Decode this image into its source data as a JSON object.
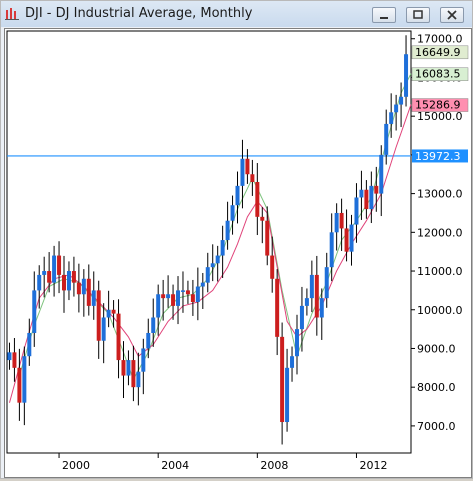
{
  "window": {
    "title": "DJI - DJ Industrial Average, Monthly",
    "icon": "chart-icon"
  },
  "chart_data": {
    "type": "candlestick",
    "title": "DJI - DJ Industrial Average, Monthly",
    "xlabel": "",
    "ylabel": "",
    "x_ticks": [
      "2000",
      "2004",
      "2008",
      "2012"
    ],
    "y_ticks": [
      7000,
      8000,
      9000,
      10000,
      11000,
      12000,
      13000,
      14000,
      15000,
      16000,
      17000
    ],
    "y_tick_labels": [
      "7000.0",
      "8000.0",
      "9000.0",
      "10000.0",
      "11000.0",
      "12000.0",
      "13000.0",
      "14000.0",
      "15000.0",
      "16000.0",
      "17000.0"
    ],
    "ylim": [
      6300,
      17200
    ],
    "xlim": [
      1997.9,
      2014.2
    ],
    "horizontal_line": {
      "value": 13972.3,
      "label": "13972.3",
      "color": "#1e90ff"
    },
    "price_badges": [
      {
        "label": "16649.9",
        "value": 16650,
        "bg": "#e0ecd0",
        "fg": "#000000"
      },
      {
        "label": "16083.5",
        "value": 16083,
        "bg": "#d8efd2",
        "fg": "#000000"
      },
      {
        "label": "15286.9",
        "value": 15287,
        "bg": "#ff8fb0",
        "fg": "#000000"
      }
    ],
    "series": [
      {
        "name": "price",
        "x": [
          1998.0,
          1998.2,
          1998.4,
          1998.6,
          1998.8,
          1999.0,
          1999.2,
          1999.4,
          1999.6,
          1999.8,
          2000.0,
          2000.2,
          2000.4,
          2000.6,
          2000.8,
          2001.0,
          2001.2,
          2001.4,
          2001.6,
          2001.8,
          2002.0,
          2002.2,
          2002.4,
          2002.6,
          2002.8,
          2003.0,
          2003.2,
          2003.4,
          2003.6,
          2003.8,
          2004.0,
          2004.2,
          2004.4,
          2004.6,
          2004.8,
          2005.0,
          2005.2,
          2005.4,
          2005.6,
          2005.8,
          2006.0,
          2006.2,
          2006.4,
          2006.6,
          2006.8,
          2007.0,
          2007.2,
          2007.4,
          2007.6,
          2007.8,
          2008.0,
          2008.2,
          2008.4,
          2008.6,
          2008.8,
          2009.0,
          2009.2,
          2009.4,
          2009.6,
          2009.8,
          2010.0,
          2010.2,
          2010.4,
          2010.6,
          2010.8,
          2011.0,
          2011.2,
          2011.4,
          2011.6,
          2011.8,
          2012.0,
          2012.2,
          2012.4,
          2012.6,
          2012.8,
          2013.0,
          2013.2,
          2013.4,
          2013.6,
          2013.8,
          2014.0
        ],
        "close": [
          8900,
          8500,
          7600,
          8800,
          9400,
          10500,
          10900,
          11000,
          10700,
          11400,
          10900,
          10500,
          11000,
          10700,
          10400,
          10800,
          10100,
          10500,
          9200,
          9800,
          10000,
          9900,
          8700,
          8300,
          8700,
          8000,
          8400,
          9000,
          9400,
          9800,
          10400,
          10300,
          10400,
          10100,
          10500,
          10500,
          10400,
          10200,
          10600,
          10700,
          11100,
          11200,
          11400,
          11800,
          12300,
          12700,
          13200,
          13900,
          13500,
          13300,
          12400,
          12300,
          11400,
          10800,
          9300,
          7100,
          8500,
          8800,
          9500,
          10100,
          10300,
          10900,
          9800,
          10300,
          11100,
          12000,
          12500,
          12100,
          11500,
          12200,
          12900,
          13100,
          12600,
          13200,
          13000,
          14000,
          14800,
          15100,
          15300,
          15500,
          16600
        ],
        "color": "#1e6fd9"
      },
      {
        "name": "ma_short",
        "x": [
          1998.4,
          1999.0,
          1999.6,
          2000.2,
          2000.8,
          2001.4,
          2002.0,
          2002.6,
          2003.0,
          2003.6,
          2004.2,
          2004.8,
          2005.4,
          2006.0,
          2006.6,
          2007.2,
          2007.8,
          2008.4,
          2009.0,
          2009.6,
          2010.2,
          2010.8,
          2011.4,
          2012.0,
          2012.6,
          2013.2,
          2013.8,
          2014.2
        ],
        "values": [
          8300,
          9600,
          10600,
          10800,
          10700,
          10300,
          9900,
          8900,
          8200,
          8900,
          9900,
          10300,
          10400,
          10800,
          11500,
          12600,
          13400,
          12600,
          10500,
          8800,
          9900,
          10700,
          11800,
          12300,
          12900,
          14300,
          15600,
          16100
        ],
        "color": "#7fc47f"
      },
      {
        "name": "ma_long",
        "x": [
          1998.0,
          1998.6,
          1999.2,
          1999.8,
          2000.4,
          2001.0,
          2001.6,
          2002.2,
          2002.8,
          2003.2,
          2003.8,
          2004.4,
          2005.0,
          2005.6,
          2006.2,
          2006.8,
          2007.2,
          2007.6,
          2008.0,
          2008.4,
          2008.8,
          2009.2,
          2009.6,
          2010.0,
          2010.6,
          2011.2,
          2011.8,
          2012.4,
          2013.0,
          2013.6,
          2014.2
        ],
        "values": [
          7600,
          9000,
          10300,
          10800,
          10900,
          10600,
          10200,
          9800,
          9300,
          8800,
          9100,
          9700,
          10100,
          10200,
          10500,
          11100,
          11700,
          12400,
          12800,
          12500,
          11100,
          9700,
          9300,
          9500,
          10100,
          11000,
          11700,
          12300,
          13000,
          14200,
          15300
        ],
        "color": "#e0447a"
      }
    ],
    "grid": false,
    "legend": "none"
  }
}
